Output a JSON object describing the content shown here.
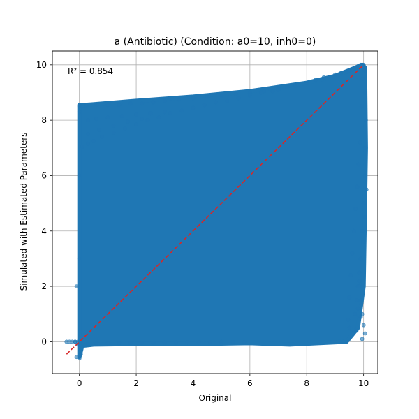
{
  "chart_data": {
    "type": "scatter",
    "title": "a (Antibiotic) (Condition: a0=10, inh0=0)",
    "xlabel": "Original",
    "ylabel": "Simulated with Estimated Parameters",
    "xlim": [
      -0.95,
      10.5
    ],
    "ylim": [
      -1.15,
      10.5
    ],
    "x_ticks": [
      0,
      2,
      4,
      6,
      8,
      10
    ],
    "y_ticks": [
      0,
      2,
      4,
      6,
      8,
      10
    ],
    "grid": true,
    "annotation": "R² = 0.854",
    "point_color": "#1f77b4",
    "reference_line": {
      "x": [
        -0.45,
        10
      ],
      "y": [
        -0.45,
        10
      ],
      "color": "#d62728",
      "style": "dashed"
    },
    "point_cloud_outline": {
      "x": [
        0,
        0,
        0.2,
        2,
        4,
        6,
        8,
        9,
        9.6,
        9.95,
        10.05,
        10.08,
        10.05,
        10,
        9.8,
        9.4,
        7.4,
        6,
        4,
        2,
        0.5,
        0.1,
        0
      ],
      "y": [
        -0.55,
        8.55,
        8.55,
        8.7,
        8.85,
        9.05,
        9.35,
        9.6,
        9.85,
        10.0,
        9.9,
        7.0,
        5.0,
        2.0,
        0.5,
        0.0,
        -0.1,
        -0.05,
        -0.08,
        -0.08,
        -0.1,
        -0.15,
        -0.55
      ]
    },
    "points": {
      "x": [
        -0.45,
        -0.35,
        -0.25,
        -0.15,
        -0.05,
        -0.1,
        0.0,
        0.0,
        0.0,
        0.0,
        0.0,
        -0.1,
        0.05,
        0.0,
        0.25,
        0.6,
        1.0,
        1.4,
        1.8,
        2.2,
        2.6,
        3.0,
        3.5,
        4.0,
        4.5,
        5.0,
        5.5,
        6.0,
        6.5,
        7.0,
        7.3,
        7.6,
        8.0,
        8.3,
        8.6,
        9.0,
        9.2,
        9.4,
        9.5,
        9.6,
        9.7,
        9.8,
        9.9,
        9.95,
        10.0,
        10.02,
        10.05,
        10.05,
        10.08,
        10.05,
        10.05,
        10.0,
        9.95,
        9.9,
        9.85,
        9.8,
        9.75,
        9.7,
        9.5,
        0.1,
        0.3,
        0.5,
        0.8,
        1.2,
        1.6,
        2.0,
        2.4,
        2.8,
        3.2,
        3.6,
        4.0,
        4.4,
        4.8,
        5.2,
        5.6,
        6.0,
        6.4,
        6.8,
        7.0,
        0.3,
        0.6,
        1.0,
        1.5,
        2.0,
        2.5,
        3.0,
        0.3,
        0.7,
        1.2,
        1.7,
        2.2,
        0.3,
        0.6,
        1.0,
        1.4,
        1.8,
        2.2,
        2.6,
        3.0,
        3.4,
        3.8,
        4.2,
        4.6,
        5.0,
        5.4,
        5.8,
        9.97,
        9.93,
        9.88,
        9.82,
        9.78,
        9.72,
        9.66,
        9.6,
        9.55,
        9.5,
        9.45,
        9.85,
        9.9,
        9.95,
        10.0,
        10.05,
        10.1,
        10.05,
        9.98,
        9.9,
        9.85,
        9.8,
        9.75,
        9.9,
        9.95,
        -0.15,
        -0.05
      ],
      "y": [
        0.0,
        0.0,
        0.0,
        0.0,
        0.0,
        2.0,
        8.5,
        8.3,
        6.0,
        3.0,
        -0.6,
        -0.55,
        -0.45,
        8.55,
        8.55,
        8.55,
        8.55,
        8.55,
        8.6,
        8.6,
        8.65,
        8.7,
        8.75,
        8.8,
        8.85,
        8.9,
        8.95,
        9.0,
        9.05,
        9.15,
        9.2,
        9.25,
        9.35,
        9.45,
        9.55,
        9.65,
        9.7,
        9.75,
        9.8,
        9.85,
        9.9,
        9.95,
        10.0,
        10.0,
        10.0,
        9.9,
        9.8,
        9.0,
        8.0,
        7.0,
        6.0,
        5.0,
        4.0,
        3.0,
        2.5,
        2.0,
        1.5,
        1.0,
        0.5,
        7.05,
        7.15,
        7.25,
        7.4,
        7.55,
        7.7,
        7.85,
        8.0,
        8.1,
        8.25,
        8.35,
        8.45,
        8.55,
        8.65,
        8.7,
        8.8,
        8.9,
        9.0,
        9.05,
        9.1,
        8.0,
        8.05,
        8.1,
        8.15,
        8.2,
        8.25,
        8.3,
        7.5,
        7.65,
        7.8,
        7.95,
        8.05,
        -0.08,
        -0.07,
        -0.06,
        -0.05,
        -0.05,
        -0.04,
        -0.04,
        -0.03,
        -0.03,
        -0.02,
        -0.02,
        -0.02,
        -0.01,
        -0.01,
        -0.01,
        9.5,
        8.5,
        7.2,
        6.4,
        5.6,
        4.8,
        4.0,
        3.2,
        2.4,
        1.6,
        0.8,
        2.0,
        1.5,
        1.0,
        0.6,
        0.3,
        5.5,
        4.5,
        3.6,
        3.0,
        2.2,
        1.2,
        0.4,
        0.9,
        0.1,
        0.0,
        -0.1
      ]
    }
  }
}
